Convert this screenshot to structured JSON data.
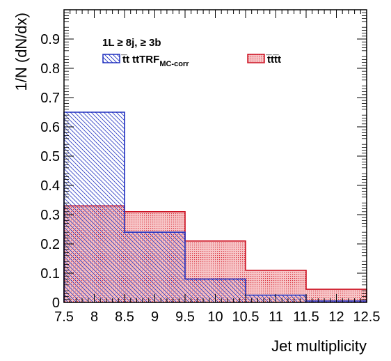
{
  "chart_data": {
    "type": "histogram",
    "xlabel": "Jet multiplicity",
    "ylabel": "1/N (dN/dx)",
    "xlim": [
      7.5,
      12.5
    ],
    "ylim": [
      0,
      1.0
    ],
    "x_ticks": [
      "7.5",
      "8",
      "8.5",
      "9",
      "9.5",
      "10",
      "10.5",
      "11",
      "11.5",
      "12",
      "12.5"
    ],
    "y_ticks": [
      "0",
      "0.1",
      "0.2",
      "0.3",
      "0.4",
      "0.5",
      "0.6",
      "0.7",
      "0.8",
      "0.9"
    ],
    "bin_edges": [
      7.5,
      8.5,
      9.5,
      10.5,
      11.5,
      12.5
    ],
    "selection_label": "1L ≥ 8j, ≥ 3b",
    "grid": false,
    "series": [
      {
        "name": "t̅t ttTRF",
        "subscript": "MC-corr",
        "values": [
          0.65,
          0.24,
          0.08,
          0.025,
          0.005
        ],
        "color": "#1f2fbf",
        "fill": "hatch"
      },
      {
        "name": "t̅tt̅t",
        "values": [
          0.33,
          0.31,
          0.21,
          0.11,
          0.045
        ],
        "color": "#cc1122",
        "fill": "dots"
      }
    ]
  }
}
